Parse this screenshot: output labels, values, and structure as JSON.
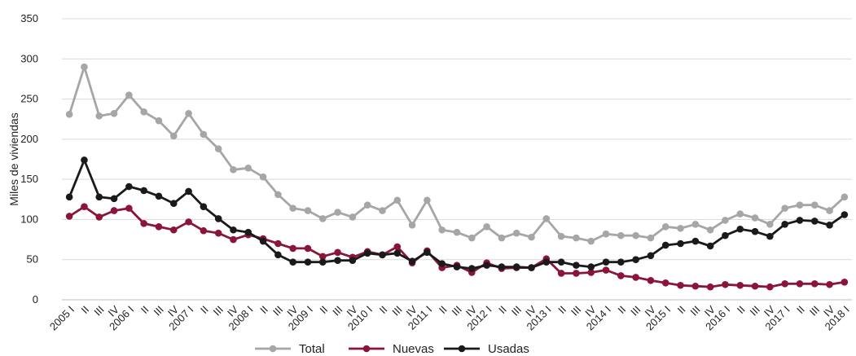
{
  "chart_data": {
    "type": "line",
    "ylabel": "Miles de viviendas",
    "xlabel": "",
    "ylim": [
      0,
      350
    ],
    "yticks": [
      0,
      50,
      100,
      150,
      200,
      250,
      300,
      350
    ],
    "grid": "horizontal",
    "legend_position": "bottom-center",
    "categories": [
      "2005 I",
      "II",
      "III",
      "IV",
      "2006 I",
      "II",
      "III",
      "IV",
      "2007 I",
      "II",
      "III",
      "IV",
      "2008 I",
      "II",
      "III",
      "IV",
      "2009 I",
      "II",
      "III",
      "IV",
      "2010 I",
      "II",
      "III",
      "IV",
      "2011 I",
      "II",
      "III",
      "IV",
      "2012 I",
      "II",
      "III",
      "IV",
      "2013 I",
      "II",
      "III",
      "IV",
      "2014 I",
      "II",
      "III",
      "IV",
      "2015 I",
      "II",
      "III",
      "IV",
      "2016 I",
      "II",
      "III",
      "IV",
      "2017 I",
      "II",
      "III",
      "IV",
      "2018 I"
    ],
    "series": [
      {
        "name": "Total",
        "color": "#a6a6a6",
        "values": [
          231,
          290,
          229,
          232,
          255,
          234,
          223,
          204,
          232,
          206,
          188,
          162,
          164,
          153,
          131,
          114,
          111,
          101,
          109,
          103,
          118,
          111,
          124,
          93,
          124,
          87,
          84,
          77,
          91,
          77,
          83,
          78,
          101,
          79,
          77,
          73,
          82,
          80,
          80,
          77,
          91,
          89,
          94,
          87,
          99,
          107,
          102,
          94,
          114,
          118,
          118,
          111,
          128
        ]
      },
      {
        "name": "Nuevas",
        "color": "#8a1538",
        "values": [
          104,
          116,
          103,
          111,
          114,
          95,
          91,
          87,
          97,
          86,
          83,
          75,
          81,
          76,
          70,
          64,
          64,
          54,
          59,
          53,
          60,
          56,
          66,
          46,
          61,
          40,
          43,
          34,
          46,
          39,
          40,
          40,
          51,
          33,
          33,
          34,
          37,
          30,
          28,
          24,
          21,
          18,
          17,
          16,
          19,
          18,
          17,
          16,
          20,
          20,
          20,
          19,
          22
        ]
      },
      {
        "name": "Usadas",
        "color": "#1a1a1a",
        "values": [
          128,
          174,
          128,
          126,
          141,
          136,
          129,
          120,
          135,
          116,
          101,
          87,
          84,
          73,
          56,
          47,
          47,
          47,
          49,
          49,
          58,
          56,
          58,
          48,
          59,
          45,
          41,
          39,
          43,
          41,
          41,
          40,
          47,
          47,
          43,
          41,
          47,
          47,
          50,
          55,
          68,
          70,
          73,
          67,
          80,
          88,
          85,
          79,
          94,
          99,
          98,
          93,
          106
        ]
      }
    ]
  }
}
